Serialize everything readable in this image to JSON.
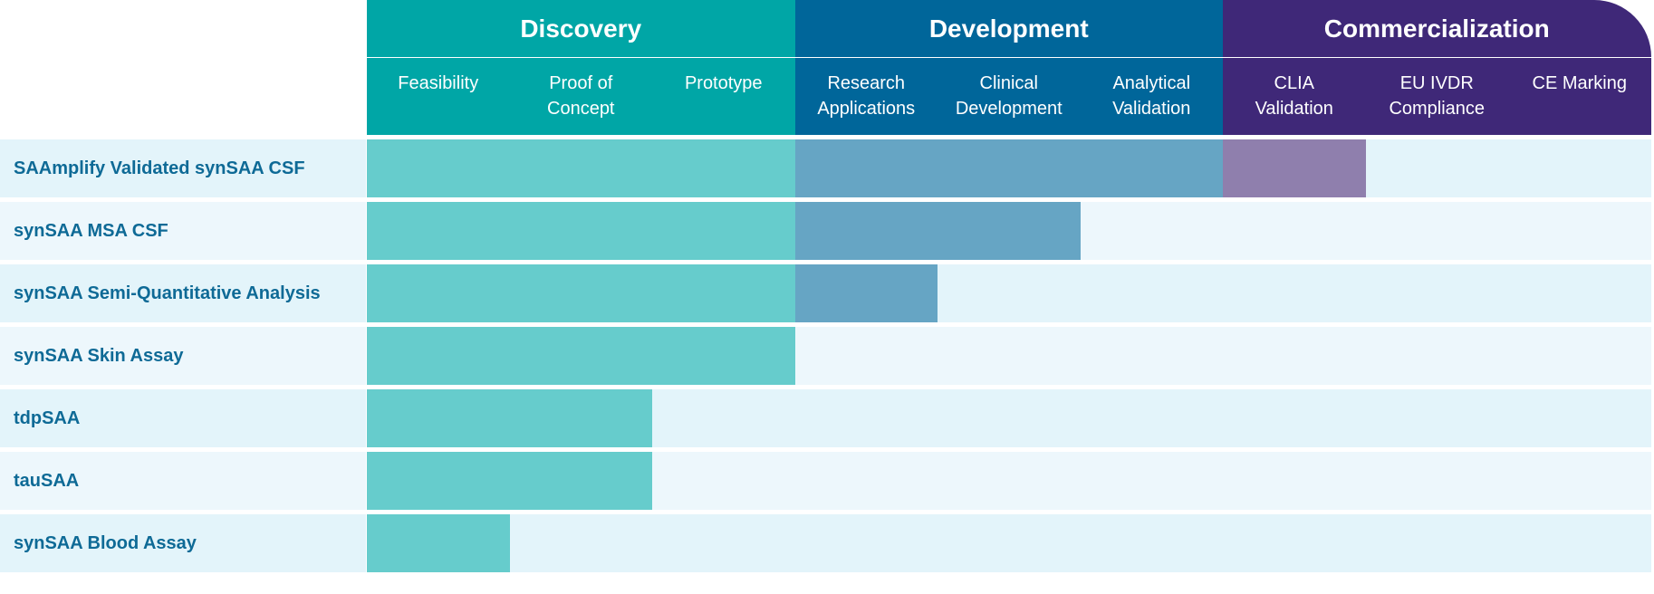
{
  "colors": {
    "discovery": "#00a6a6",
    "development": "#00669a",
    "commercialization": "#3f2878",
    "bar_discovery": "#66cccc",
    "bar_development": "#66a5c4",
    "bar_commercialization": "#8f7fad",
    "row_shade_a": "#e3f4fa",
    "row_shade_b": "#edf7fc",
    "label_text": "#0e6a96"
  },
  "chart_data": {
    "type": "bar",
    "orientation": "horizontal",
    "phases": [
      {
        "name": "Discovery",
        "stages": 3,
        "color": "#00a6a6"
      },
      {
        "name": "Development",
        "stages": 3,
        "color": "#00669a"
      },
      {
        "name": "Commercialization",
        "stages": 3,
        "color": "#3f2878"
      }
    ],
    "stages": [
      "Feasibility",
      "Proof of\nConcept",
      "Prototype",
      "Research\nApplications",
      "Clinical\nDevelopment",
      "Analytical\nValidation",
      "CLIA\nValidation",
      "EU IVDR\nCompliance",
      "CE Marking"
    ],
    "categories": [
      "SAAmplify Validated synSAA CSF",
      "synSAA MSA CSF",
      "synSAA Semi-Quantitative Analysis",
      "synSAA Skin Assay",
      "tdpSAA",
      "tauSAA",
      "synSAA Blood Assay"
    ],
    "values": [
      7,
      5,
      4,
      3,
      2,
      2,
      1
    ],
    "xlim": [
      0,
      9
    ]
  }
}
